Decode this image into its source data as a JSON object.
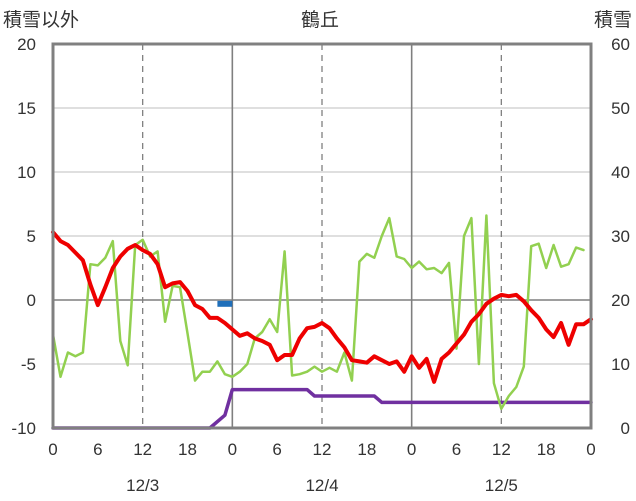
{
  "chart_data": {
    "type": "line",
    "title": "鶴丘",
    "ylabel_left": "積雪以外",
    "ylabel_right": "積雪",
    "ylim_left": [
      -10,
      20
    ],
    "ylim_right": [
      0,
      60
    ],
    "yticks_left": [
      "20",
      "15",
      "10",
      "5",
      "0",
      "-5",
      "-10"
    ],
    "yticks_right": [
      "60",
      "50",
      "40",
      "30",
      "20",
      "10",
      "0"
    ],
    "x_hour_labels": [
      "0",
      "6",
      "12",
      "18",
      "0",
      "6",
      "12",
      "18",
      "0",
      "6",
      "12",
      "18",
      "0"
    ],
    "x_date_labels": [
      "12/3",
      "12/4",
      "12/5"
    ],
    "grid": true,
    "series": [
      {
        "key": "red",
        "color": "#ee0000",
        "axis": "left",
        "points": [
          [
            0,
            5.3
          ],
          [
            1,
            4.6
          ],
          [
            2,
            4.3
          ],
          [
            3,
            3.7
          ],
          [
            4,
            3.1
          ],
          [
            5,
            1.2
          ],
          [
            6,
            -0.4
          ],
          [
            7,
            1.0
          ],
          [
            8,
            2.5
          ],
          [
            9,
            3.4
          ],
          [
            10,
            4.0
          ],
          [
            11,
            4.3
          ],
          [
            12,
            3.9
          ],
          [
            13,
            3.6
          ],
          [
            14,
            2.8
          ],
          [
            15,
            1.0
          ],
          [
            16,
            1.3
          ],
          [
            17,
            1.4
          ],
          [
            18,
            0.7
          ],
          [
            19,
            -0.4
          ],
          [
            20,
            -0.7
          ],
          [
            21,
            -1.4
          ],
          [
            22,
            -1.4
          ],
          [
            23,
            -1.8
          ],
          [
            24,
            -2.3
          ],
          [
            25,
            -2.8
          ],
          [
            26,
            -2.6
          ],
          [
            27,
            -3.0
          ],
          [
            28,
            -3.2
          ],
          [
            29,
            -3.5
          ],
          [
            30,
            -4.7
          ],
          [
            31,
            -4.3
          ],
          [
            32,
            -4.3
          ],
          [
            33,
            -3.0
          ],
          [
            34,
            -2.2
          ],
          [
            35,
            -2.1
          ],
          [
            36,
            -1.8
          ],
          [
            37,
            -2.2
          ],
          [
            38,
            -3.0
          ],
          [
            39,
            -3.7
          ],
          [
            40,
            -4.7
          ],
          [
            41,
            -4.8
          ],
          [
            42,
            -4.9
          ],
          [
            43,
            -4.4
          ],
          [
            44,
            -4.7
          ],
          [
            45,
            -5.0
          ],
          [
            46,
            -4.8
          ],
          [
            47,
            -5.6
          ],
          [
            48,
            -4.4
          ],
          [
            49,
            -5.3
          ],
          [
            50,
            -4.6
          ],
          [
            51,
            -6.4
          ],
          [
            52,
            -4.6
          ],
          [
            53,
            -4.1
          ],
          [
            54,
            -3.4
          ],
          [
            55,
            -2.7
          ],
          [
            56,
            -1.7
          ],
          [
            57,
            -1.1
          ],
          [
            58,
            -0.3
          ],
          [
            59,
            0.1
          ],
          [
            60,
            0.4
          ],
          [
            61,
            0.3
          ],
          [
            62,
            0.4
          ],
          [
            63,
            -0.1
          ],
          [
            64,
            -0.8
          ],
          [
            65,
            -1.4
          ],
          [
            66,
            -2.3
          ],
          [
            67,
            -2.9
          ],
          [
            68,
            -1.8
          ],
          [
            69,
            -3.5
          ],
          [
            70,
            -1.9
          ],
          [
            71,
            -1.9
          ],
          [
            72,
            -1.5
          ]
        ]
      },
      {
        "key": "green",
        "color": "#92d050",
        "axis": "left",
        "points": [
          [
            0,
            -2.7
          ],
          [
            1,
            -6.0
          ],
          [
            2,
            -4.1
          ],
          [
            3,
            -4.4
          ],
          [
            4,
            -4.1
          ],
          [
            5,
            2.8
          ],
          [
            6,
            2.7
          ],
          [
            7,
            3.3
          ],
          [
            8,
            4.6
          ],
          [
            9,
            -3.2
          ],
          [
            10,
            -5.1
          ],
          [
            11,
            4.3
          ],
          [
            12,
            4.7
          ],
          [
            13,
            3.4
          ],
          [
            14,
            3.8
          ],
          [
            15,
            -1.7
          ],
          [
            16,
            1.1
          ],
          [
            17,
            1.0
          ],
          [
            18,
            -2.6
          ],
          [
            19,
            -6.3
          ],
          [
            20,
            -5.6
          ],
          [
            21,
            -5.6
          ],
          [
            22,
            -4.8
          ],
          [
            23,
            -5.8
          ],
          [
            24,
            -6.0
          ],
          [
            25,
            -5.6
          ],
          [
            26,
            -5.0
          ],
          [
            27,
            -3.0
          ],
          [
            28,
            -2.5
          ],
          [
            29,
            -1.5
          ],
          [
            30,
            -2.5
          ],
          [
            31,
            3.8
          ],
          [
            32,
            -5.9
          ],
          [
            33,
            -5.8
          ],
          [
            34,
            -5.6
          ],
          [
            35,
            -5.2
          ],
          [
            36,
            -5.6
          ],
          [
            37,
            -5.3
          ],
          [
            38,
            -5.6
          ],
          [
            39,
            -4.1
          ],
          [
            40,
            -6.3
          ],
          [
            41,
            3.0
          ],
          [
            42,
            3.6
          ],
          [
            43,
            3.3
          ],
          [
            44,
            5.0
          ],
          [
            45,
            6.4
          ],
          [
            46,
            3.4
          ],
          [
            47,
            3.2
          ],
          [
            48,
            2.5
          ],
          [
            49,
            3.0
          ],
          [
            50,
            2.4
          ],
          [
            51,
            2.5
          ],
          [
            52,
            2.1
          ],
          [
            53,
            2.9
          ],
          [
            54,
            -3.8
          ],
          [
            55,
            5.0
          ],
          [
            56,
            6.4
          ],
          [
            57,
            -5.0
          ],
          [
            58,
            6.6
          ],
          [
            59,
            -6.5
          ],
          [
            60,
            -8.5
          ],
          [
            61,
            -7.5
          ],
          [
            62,
            -6.8
          ],
          [
            63,
            -5.2
          ],
          [
            64,
            4.2
          ],
          [
            65,
            4.4
          ],
          [
            66,
            2.5
          ],
          [
            67,
            4.3
          ],
          [
            68,
            2.6
          ],
          [
            69,
            2.8
          ],
          [
            70,
            4.1
          ],
          [
            71,
            3.9
          ]
        ]
      },
      {
        "key": "blue",
        "color": "#1f6fba",
        "axis": "left",
        "points": [
          [
            22,
            -0.3
          ],
          [
            24,
            -0.3
          ]
        ]
      },
      {
        "key": "purple",
        "color": "#7030a0",
        "axis": "right",
        "points": [
          [
            0,
            0
          ],
          [
            21,
            0
          ],
          [
            23,
            2
          ],
          [
            24,
            6
          ],
          [
            34,
            6
          ],
          [
            35,
            5
          ],
          [
            43,
            5
          ],
          [
            44,
            4
          ],
          [
            72,
            4
          ]
        ]
      }
    ]
  }
}
